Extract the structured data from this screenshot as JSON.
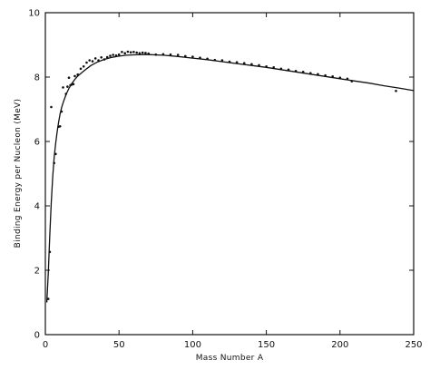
{
  "chart_data": {
    "type": "scatter",
    "title": "",
    "xlabel": "Mass Number A",
    "ylabel": "Binding Energy per Nucleon (MeV)",
    "xlim": [
      0,
      250
    ],
    "ylim": [
      0,
      10
    ],
    "xticks": [
      0,
      50,
      100,
      150,
      200,
      250
    ],
    "yticks": [
      0,
      2,
      4,
      6,
      8,
      10
    ],
    "grid": false,
    "legend": "none",
    "series": [
      {
        "kind": "points",
        "x": [
          2,
          3,
          4,
          6,
          7,
          9,
          10,
          11,
          12,
          14,
          15,
          16,
          17,
          18,
          19,
          20,
          22,
          24,
          26,
          28,
          30,
          32,
          34,
          36,
          38,
          40,
          42,
          44,
          46,
          48,
          50,
          52,
          54,
          56,
          58,
          60,
          62,
          64,
          66,
          68,
          70,
          75,
          80,
          85,
          90,
          95,
          100,
          105,
          110,
          115,
          120,
          125,
          130,
          135,
          140,
          145,
          150,
          155,
          160,
          165,
          170,
          175,
          180,
          185,
          190,
          195,
          200,
          205,
          208,
          238
        ],
        "y": [
          1.11,
          2.57,
          7.07,
          5.33,
          5.61,
          6.46,
          6.47,
          6.93,
          7.68,
          7.48,
          7.7,
          7.98,
          7.75,
          7.77,
          7.78,
          8.03,
          8.08,
          8.26,
          8.33,
          8.45,
          8.52,
          8.49,
          8.58,
          8.52,
          8.61,
          8.55,
          8.62,
          8.66,
          8.69,
          8.67,
          8.7,
          8.78,
          8.74,
          8.79,
          8.77,
          8.78,
          8.76,
          8.74,
          8.76,
          8.75,
          8.73,
          8.7,
          8.71,
          8.7,
          8.69,
          8.65,
          8.63,
          8.6,
          8.57,
          8.53,
          8.52,
          8.48,
          8.46,
          8.43,
          8.4,
          8.37,
          8.33,
          8.3,
          8.26,
          8.23,
          8.19,
          8.16,
          8.12,
          8.09,
          8.05,
          8.02,
          7.98,
          7.95,
          7.87,
          7.57
        ]
      },
      {
        "kind": "line",
        "x": [
          1,
          2,
          3,
          4,
          5,
          6,
          7,
          8,
          9,
          10,
          11,
          12,
          14,
          16,
          18,
          20,
          22,
          25,
          28,
          31,
          35,
          40,
          45,
          50,
          55,
          60,
          65,
          70,
          80,
          90,
          100,
          110,
          120,
          130,
          140,
          150,
          160,
          170,
          180,
          190,
          200,
          210,
          220,
          230,
          240,
          250
        ],
        "y": [
          1.0,
          1.9,
          3.1,
          4.1,
          4.9,
          5.5,
          5.95,
          6.3,
          6.6,
          6.85,
          7.05,
          7.2,
          7.45,
          7.65,
          7.8,
          7.93,
          8.03,
          8.15,
          8.26,
          8.36,
          8.46,
          8.55,
          8.61,
          8.65,
          8.68,
          8.69,
          8.7,
          8.7,
          8.68,
          8.64,
          8.59,
          8.54,
          8.48,
          8.42,
          8.36,
          8.3,
          8.23,
          8.16,
          8.09,
          8.02,
          7.95,
          7.88,
          7.81,
          7.73,
          7.66,
          7.58
        ]
      }
    ]
  }
}
